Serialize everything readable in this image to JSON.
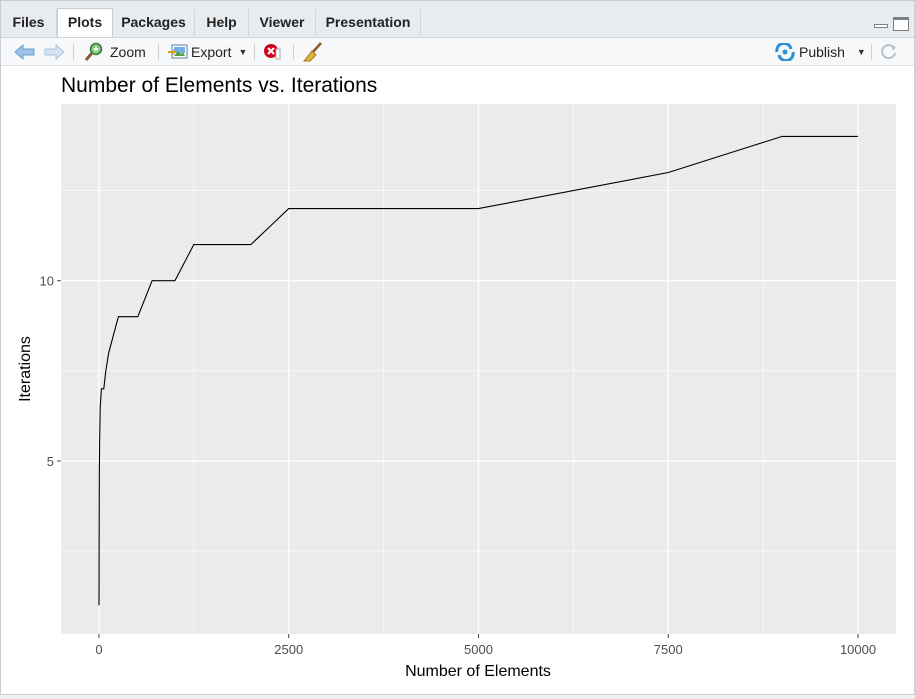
{
  "tabs": [
    {
      "label": "Files",
      "active": false
    },
    {
      "label": "Plots",
      "active": true
    },
    {
      "label": "Packages",
      "active": false
    },
    {
      "label": "Help",
      "active": false
    },
    {
      "label": "Viewer",
      "active": false
    },
    {
      "label": "Presentation",
      "active": false
    }
  ],
  "toolbar": {
    "zoom_label": "Zoom",
    "export_label": "Export",
    "publish_label": "Publish"
  },
  "icons": {
    "back": "arrow-left-icon",
    "forward": "arrow-right-icon",
    "zoom": "magnifier-icon",
    "export": "export-image-icon",
    "remove": "remove-plot-icon",
    "clear": "broom-icon",
    "publish": "publish-icon",
    "refresh": "refresh-icon",
    "minimize": "minimize-icon",
    "maximize": "maximize-icon"
  },
  "colors": {
    "panel_bg": "#ebebeb",
    "grid": "#ffffff",
    "line": "#000000",
    "publish": "#2d8fd5",
    "remove": "#d0021b"
  },
  "chart_data": {
    "type": "line",
    "title": "Number of Elements vs. Iterations",
    "xlabel": "Number of Elements",
    "ylabel": "Iterations",
    "x_ticks": [
      0,
      2500,
      5000,
      7500,
      10000
    ],
    "y_ticks": [
      5,
      10
    ],
    "xlim": [
      -500,
      10500
    ],
    "ylim": [
      0.2,
      14.9
    ],
    "grid": true,
    "series": [
      {
        "x": [
          1,
          2,
          4,
          8,
          16,
          32,
          64,
          90,
          128,
          256,
          300,
          512,
          700,
          1000,
          1250,
          2000,
          2250,
          2500,
          5000,
          7500,
          9000,
          10000
        ],
        "y": [
          1,
          2.5,
          4.5,
          5.5,
          6.5,
          7,
          7,
          7.5,
          8,
          9,
          9,
          9,
          10,
          10,
          11,
          11,
          11.5,
          12,
          12,
          13,
          14,
          14
        ]
      }
    ]
  }
}
